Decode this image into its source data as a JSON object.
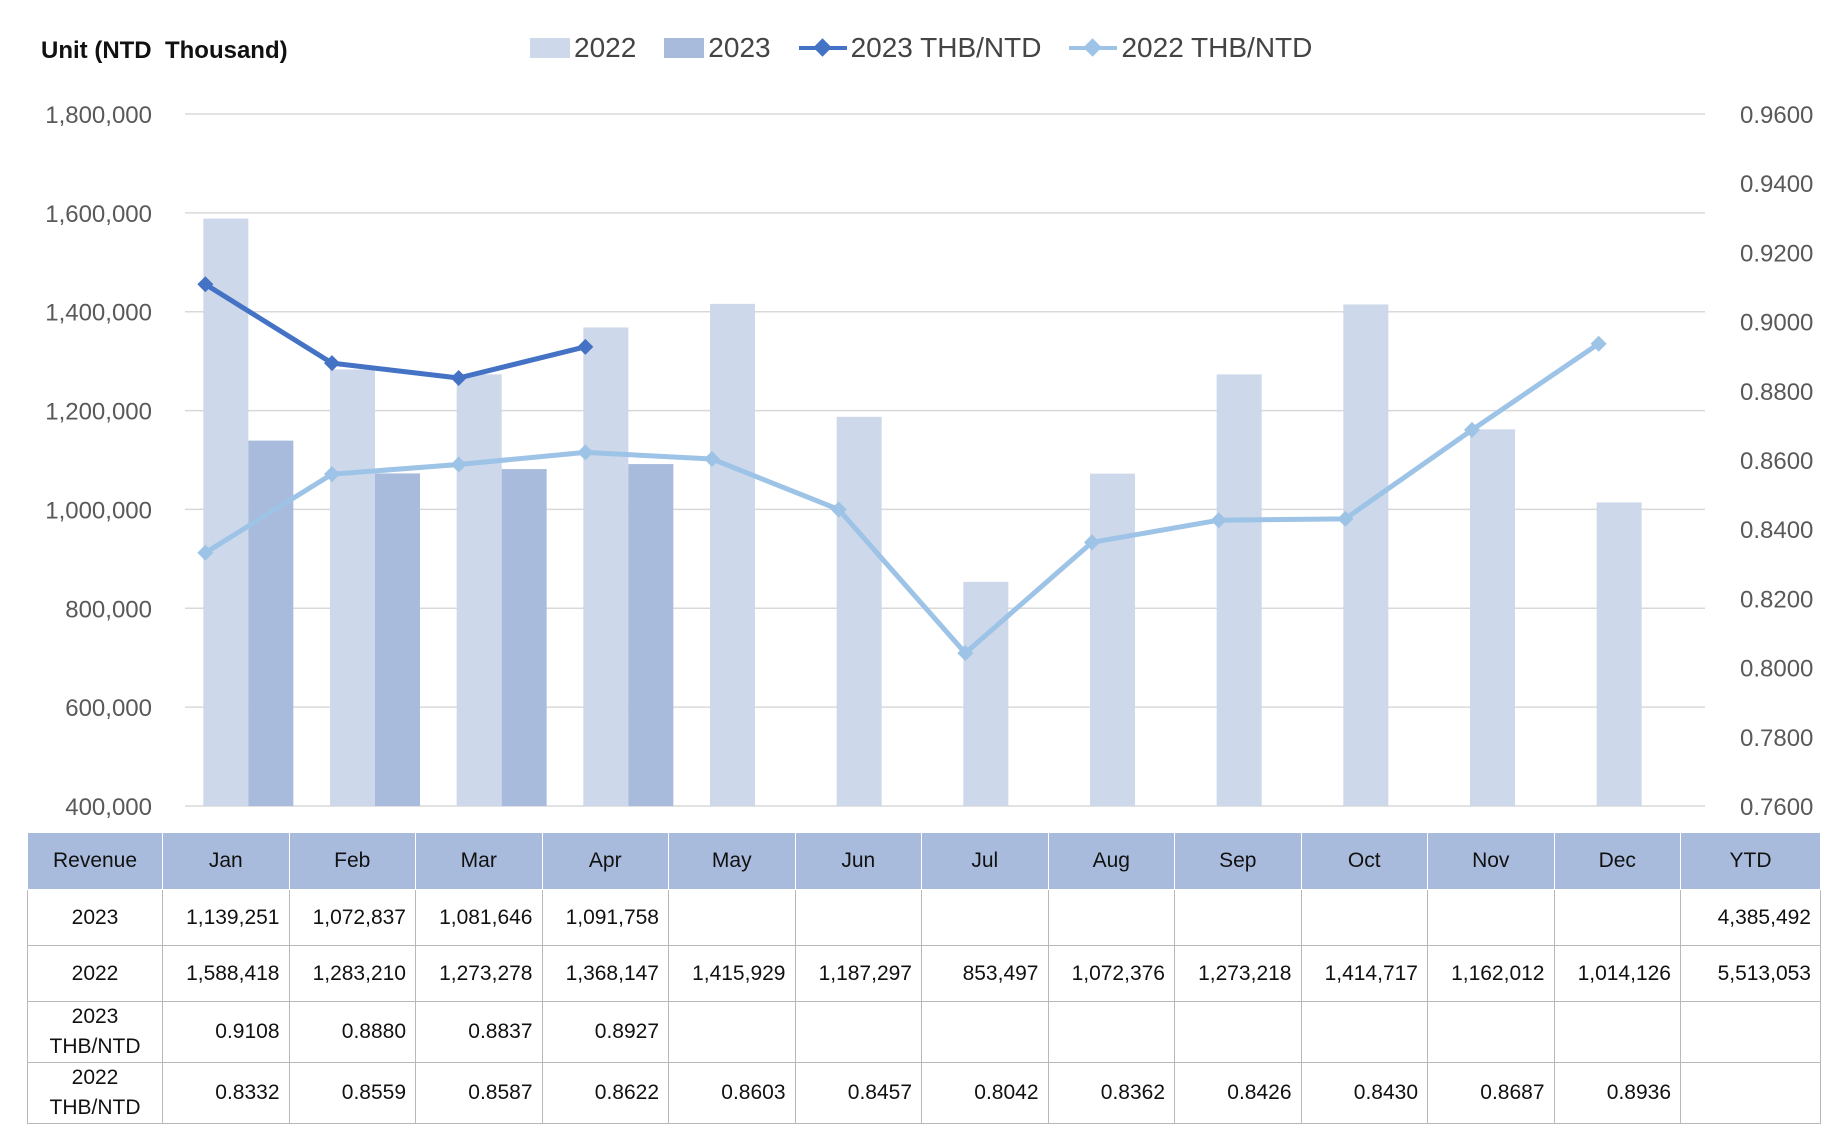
{
  "chart_data": {
    "type": "bar+line",
    "unit_label": "Unit (NTD  Thousand)",
    "categories": [
      "Jan",
      "Feb",
      "Mar",
      "Apr",
      "May",
      "Jun",
      "Jul",
      "Aug",
      "Sep",
      "Oct",
      "Nov",
      "Dec"
    ],
    "bar_series": [
      {
        "name": "2022",
        "color": "#cdd8ea",
        "values": [
          1588418,
          1283210,
          1273278,
          1368147,
          1415929,
          1187297,
          853497,
          1072376,
          1273218,
          1414717,
          1162012,
          1014126
        ]
      },
      {
        "name": "2023",
        "color": "#a9bbdc",
        "values": [
          1139251,
          1072837,
          1081646,
          1091758,
          null,
          null,
          null,
          null,
          null,
          null,
          null,
          null
        ]
      }
    ],
    "line_series": [
      {
        "name": "2023 THB/NTD",
        "color": "#4472c4",
        "values": [
          0.9108,
          0.888,
          0.8837,
          0.8927,
          null,
          null,
          null,
          null,
          null,
          null,
          null,
          null
        ]
      },
      {
        "name": "2022 THB/NTD",
        "color": "#9dc3e6",
        "values": [
          0.8332,
          0.8559,
          0.8587,
          0.8622,
          0.8603,
          0.8457,
          0.8042,
          0.8362,
          0.8426,
          0.843,
          0.8687,
          0.8936
        ]
      }
    ],
    "y_left": {
      "min": 400000,
      "max": 1800000,
      "step": 200000,
      "tick_labels": [
        "400,000",
        "600,000",
        "800,000",
        "1,000,000",
        "1,200,000",
        "1,400,000",
        "1,600,000",
        "1,800,000"
      ]
    },
    "y_right": {
      "min": 0.76,
      "max": 0.96,
      "step": 0.02,
      "tick_labels": [
        "0.7600",
        "0.7800",
        "0.8000",
        "0.8200",
        "0.8400",
        "0.8600",
        "0.8800",
        "0.9000",
        "0.9200",
        "0.9400",
        "0.9600"
      ]
    },
    "grid": true,
    "legend_position": "top"
  },
  "table": {
    "header": [
      "Revenue",
      "Jan",
      "Feb",
      "Mar",
      "Apr",
      "May",
      "Jun",
      "Jul",
      "Aug",
      "Sep",
      "Oct",
      "Nov",
      "Dec",
      "YTD"
    ],
    "rows": [
      [
        "2023",
        "1,139,251",
        "1,072,837",
        "1,081,646",
        "1,091,758",
        "",
        "",
        "",
        "",
        "",
        "",
        "",
        "",
        "4,385,492"
      ],
      [
        "2022",
        "1,588,418",
        "1,283,210",
        "1,273,278",
        "1,368,147",
        "1,415,929",
        "1,187,297",
        "853,497",
        "1,072,376",
        "1,273,218",
        "1,414,717",
        "1,162,012",
        "1,014,126",
        "5,513,053"
      ],
      [
        "2023\nTHB/NTD",
        "0.9108",
        "0.8880",
        "0.8837",
        "0.8927",
        "",
        "",
        "",
        "",
        "",
        "",
        "",
        "",
        ""
      ],
      [
        "2022\nTHB/NTD",
        "0.8332",
        "0.8559",
        "0.8587",
        "0.8622",
        "0.8603",
        "0.8457",
        "0.8042",
        "0.8362",
        "0.8426",
        "0.8430",
        "0.8687",
        "0.8936",
        ""
      ]
    ]
  }
}
